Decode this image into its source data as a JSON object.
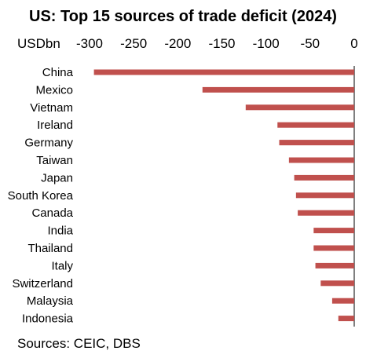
{
  "chart_data": {
    "type": "bar",
    "orientation": "horizontal",
    "title": "US: Top 15 sources of trade deficit (2024)",
    "unit_label": "USDbn",
    "source": "Sources: CEIC, DBS",
    "x_ticks": [
      -300,
      -250,
      -200,
      -150,
      -100,
      -50,
      0
    ],
    "xlim": [
      -300,
      0
    ],
    "x_axis_position": "top",
    "grid": false,
    "legend": "none",
    "bar_color": "#c0504d",
    "categories": [
      "China",
      "Mexico",
      "Vietnam",
      "Ireland",
      "Germany",
      "Taiwan",
      "Japan",
      "South Korea",
      "Canada",
      "India",
      "Thailand",
      "Italy",
      "Switzerland",
      "Malaysia",
      "Indonesia"
    ],
    "values": [
      -295,
      -172,
      -123,
      -87,
      -85,
      -74,
      -68,
      -66,
      -64,
      -46,
      -46,
      -44,
      -38,
      -25,
      -18
    ]
  }
}
